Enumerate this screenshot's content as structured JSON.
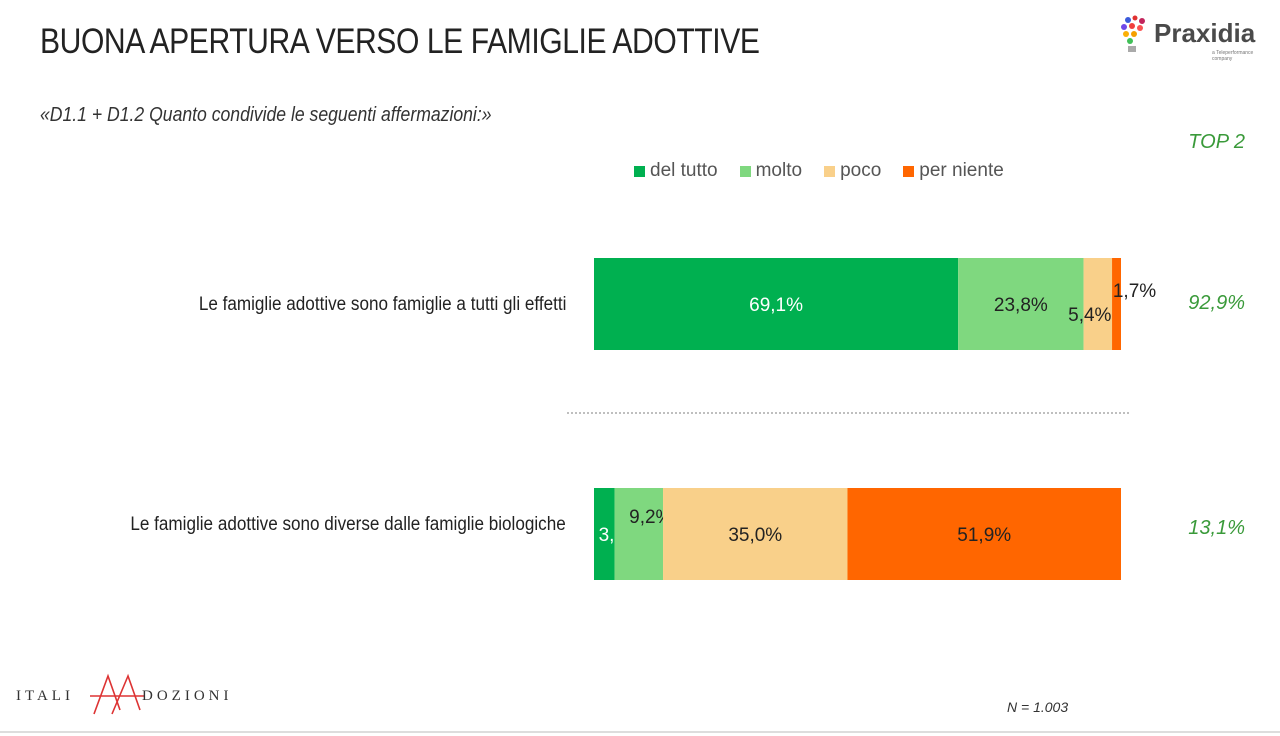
{
  "header": {
    "title": "BUONA APERTURA VERSO LE FAMIGLIE ADOTTIVE",
    "subtitle": "«D1.1 + D1.2 Quanto condivide le seguenti affermazioni:»",
    "logo": {
      "name": "Praxidia",
      "tagline": "a Teleperformance company"
    }
  },
  "chart_data": {
    "type": "bar",
    "orientation": "horizontal",
    "stacked": true,
    "unit": "%",
    "categories": [
      "Le famiglie adottive sono famiglie a tutti gli effetti",
      "Le famiglie adottive sono diverse dalle famiglie biologiche"
    ],
    "series": [
      {
        "name": "del tutto",
        "color": "#00b050",
        "values": [
          69.1,
          3.9
        ],
        "labels": [
          "69,1%",
          "3,9%"
        ]
      },
      {
        "name": "molto",
        "color": "#7fd87f",
        "values": [
          23.8,
          9.2
        ],
        "labels": [
          "23,8%",
          "9,2%"
        ]
      },
      {
        "name": "poco",
        "color": "#f9d08a",
        "values": [
          5.4,
          35.0
        ],
        "labels": [
          "5,4%",
          "35,0%"
        ]
      },
      {
        "name": "per niente",
        "color": "#ff6600",
        "values": [
          1.7,
          51.9
        ],
        "labels": [
          "1,7%",
          "51,9%"
        ]
      }
    ],
    "xlim": [
      0,
      100
    ],
    "legend": "top",
    "grid": false,
    "top2": {
      "title": "TOP 2",
      "values": [
        "92,9%",
        "13,1%"
      ]
    }
  },
  "footer": {
    "logo_left": "ITALI",
    "logo_right": "DOZIONI",
    "n_label": "N = 1.003"
  }
}
